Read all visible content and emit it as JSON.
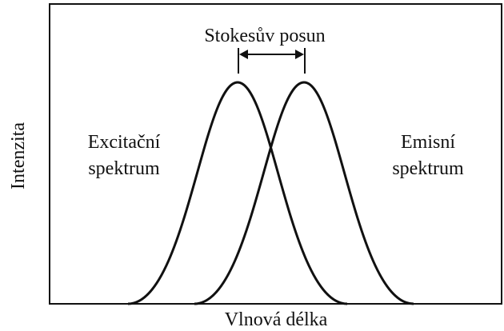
{
  "title": "Stokesův posun",
  "x_axis_label": "Vlnová délka",
  "y_axis_label": "Intenzita",
  "curves": [
    {
      "label_line1": "Excitační",
      "label_line2": "spektrum"
    },
    {
      "label_line1": "Emisní",
      "label_line2": "spektrum"
    }
  ]
}
